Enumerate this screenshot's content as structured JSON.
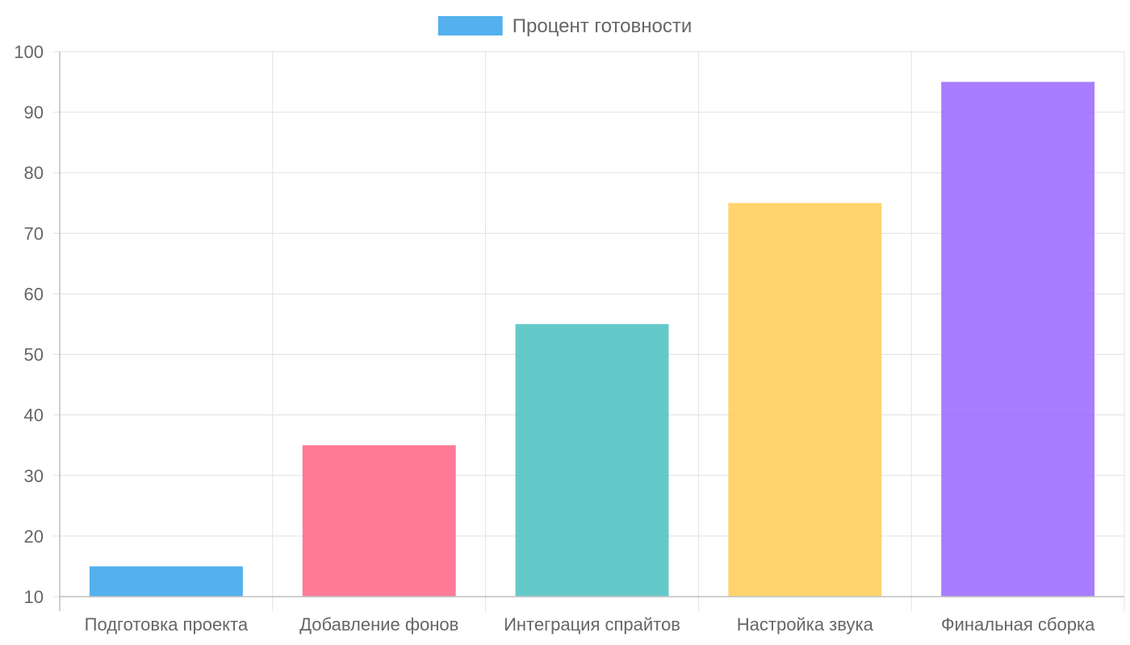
{
  "chart_data": {
    "type": "bar",
    "categories": [
      "Подготовка проекта",
      "Добавление фонов",
      "Интеграция спрайтов",
      "Настройка звука",
      "Финальная сборка"
    ],
    "series": [
      {
        "name": "Процент готовности",
        "values": [
          15,
          35,
          55,
          75,
          95
        ]
      }
    ],
    "bar_colors": [
      "#36a2eb",
      "#ff6384",
      "#4bc0c0",
      "#ffcd56",
      "#9966ff"
    ],
    "legend_color": "#36a2eb",
    "ylim": [
      10,
      100
    ],
    "yticks": [
      "100",
      "90",
      "80",
      "70",
      "60",
      "50",
      "40",
      "30",
      "20",
      "10"
    ],
    "grid": true,
    "legend_position": "top-center"
  }
}
